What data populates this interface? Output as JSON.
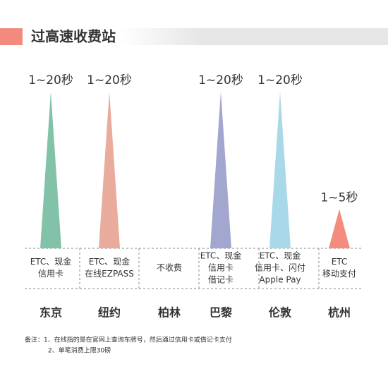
{
  "chart_data": {
    "type": "spike",
    "title": "过高速收费站",
    "categories": [
      "东京",
      "纽约",
      "柏林",
      "巴黎",
      "伦敦",
      "杭州"
    ],
    "values": [
      20,
      20,
      null,
      20,
      20,
      5
    ],
    "value_labels": [
      "1~20秒",
      "1~20秒",
      null,
      "1~20秒",
      "1~20秒",
      "1~5秒"
    ],
    "colors": [
      "#82c2a8",
      "#e8ab9c",
      null,
      "#a3a6cf",
      "#a9d9e8",
      "#f38c7c"
    ],
    "payment": [
      [
        "ETC、现金",
        "信用卡"
      ],
      [
        "ETC、现金",
        "在线EZPASS"
      ],
      [
        "不收费"
      ],
      [
        "ETC、现金",
        "信用卡",
        "借记卡"
      ],
      [
        "ETC、现金",
        "信用卡、闪付",
        "Apple Pay"
      ],
      [
        "ETC",
        "移动支付"
      ]
    ],
    "notes": [
      "备注：1、在线指的是在官网上查询车牌号，然后通过信用卡或借记卡支付",
      "2、单笔消费上限30磅"
    ]
  }
}
